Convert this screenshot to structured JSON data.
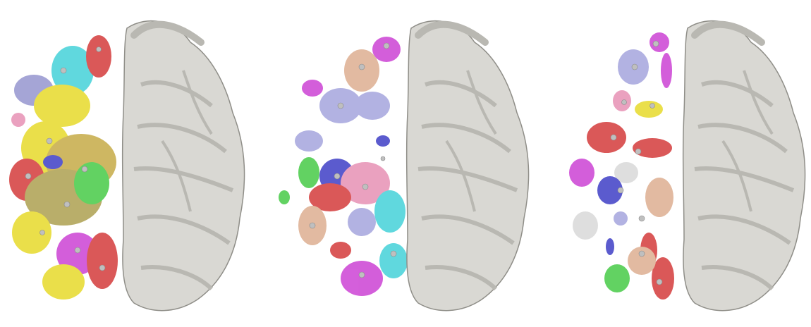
{
  "figure": {
    "panels": [
      {
        "id": "panel-1",
        "variant": "dense"
      },
      {
        "id": "panel-2",
        "variant": "medium"
      },
      {
        "id": "panel-3",
        "variant": "sparse"
      }
    ]
  },
  "colors": {
    "background": "#ffffff",
    "surface_fill": "#d9d8d3",
    "surface_shade": "#b9b8b2",
    "surface_outline": "#8f8e88",
    "region_palette": [
      "#e5d81e",
      "#c3a63c",
      "#d22f2f",
      "#c937d2",
      "#3333c2",
      "#3bc83b",
      "#39cfd6",
      "#dba98a",
      "#9f9fdb",
      "#e68ab0",
      "#8b6b3f",
      "#d7d7d7"
    ],
    "node_sphere": "#bfbfbf"
  }
}
